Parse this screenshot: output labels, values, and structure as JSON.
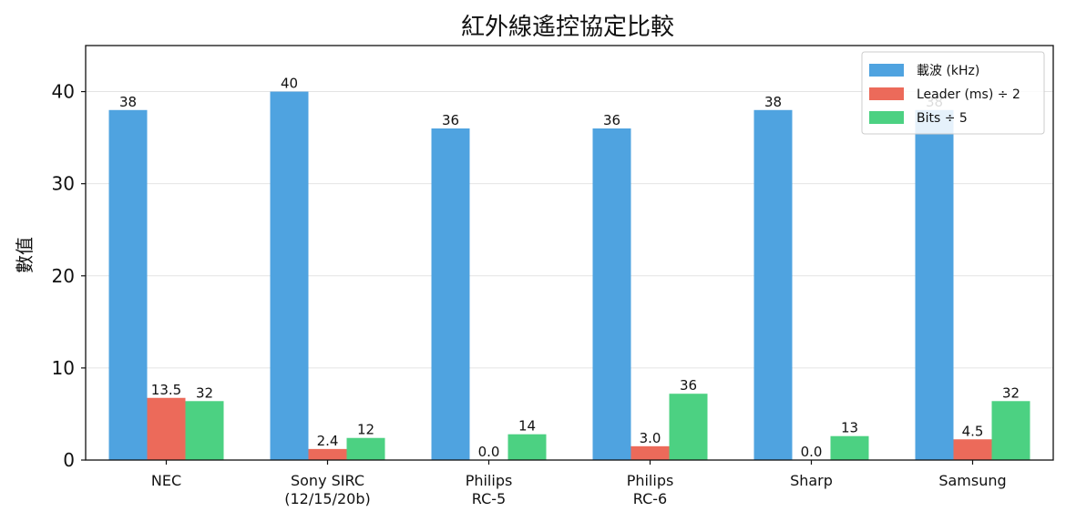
{
  "chart_data": {
    "type": "bar",
    "title": "紅外線遙控協定比較",
    "xlabel": "",
    "ylabel": "數值",
    "ylim": [
      0,
      45
    ],
    "yticks": [
      0,
      10,
      20,
      30,
      40
    ],
    "grid": "y",
    "legend_position": "top-right",
    "categories": [
      [
        "NEC"
      ],
      [
        "Sony SIRC",
        "(12/15/20b)"
      ],
      [
        "Philips",
        "RC-5"
      ],
      [
        "Philips",
        "RC-6"
      ],
      [
        "Sharp"
      ],
      [
        "Samsung"
      ]
    ],
    "series": [
      {
        "name": "載波 (kHz)",
        "color": "#4fa3e0",
        "values": [
          38,
          40,
          36,
          36,
          38,
          38
        ],
        "labels": [
          "38",
          "40",
          "36",
          "36",
          "38",
          "38"
        ]
      },
      {
        "name": "Leader (ms) ÷ 2",
        "color": "#ec6a5a",
        "values": [
          6.75,
          1.2,
          0,
          1.5,
          0,
          2.25
        ],
        "labels": [
          "13.5",
          "2.4",
          "0.0",
          "3.0",
          "0.0",
          "4.5"
        ]
      },
      {
        "name": "Bits ÷ 5",
        "color": "#4cd182",
        "values": [
          6.4,
          2.4,
          2.8,
          7.2,
          2.6,
          6.4
        ],
        "labels": [
          "32",
          "12",
          "14",
          "36",
          "13",
          "32"
        ]
      }
    ]
  }
}
